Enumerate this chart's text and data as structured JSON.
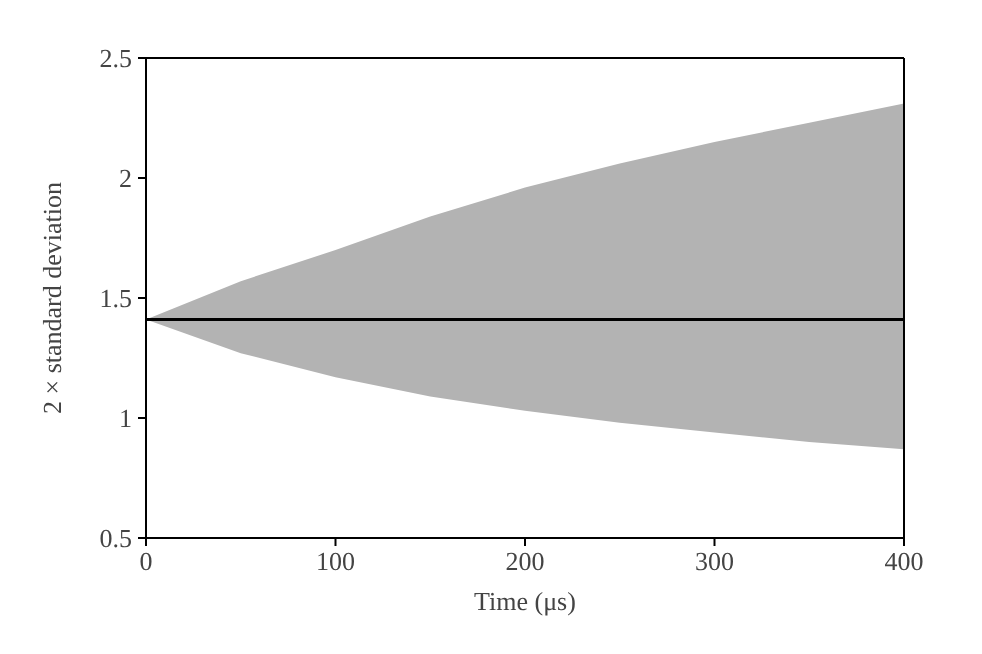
{
  "chart_data": {
    "type": "line",
    "xlabel": "Time (μs)",
    "ylabel": "2 × standard deviation",
    "x": [
      0,
      50,
      100,
      150,
      200,
      250,
      300,
      350,
      400
    ],
    "series": [
      {
        "color": "#000000",
        "values": [
          1.41,
          1.41,
          1.41,
          1.41,
          1.41,
          1.41,
          1.41,
          1.41,
          1.41
        ],
        "lower": [
          1.41,
          1.27,
          1.17,
          1.09,
          1.03,
          0.98,
          0.94,
          0.9,
          0.87
        ],
        "upper": [
          1.41,
          1.57,
          1.7,
          1.84,
          1.96,
          2.06,
          2.15,
          2.23,
          2.31
        ]
      }
    ],
    "xlim": [
      0,
      400
    ],
    "xticks": [
      0,
      100,
      200,
      300,
      400
    ],
    "ylim": [
      0.5,
      2.5
    ],
    "yticks": [
      0.5,
      1,
      1.5,
      2,
      2.5
    ],
    "grid": false,
    "legend": false,
    "marker": "none",
    "line_style": "solid"
  }
}
